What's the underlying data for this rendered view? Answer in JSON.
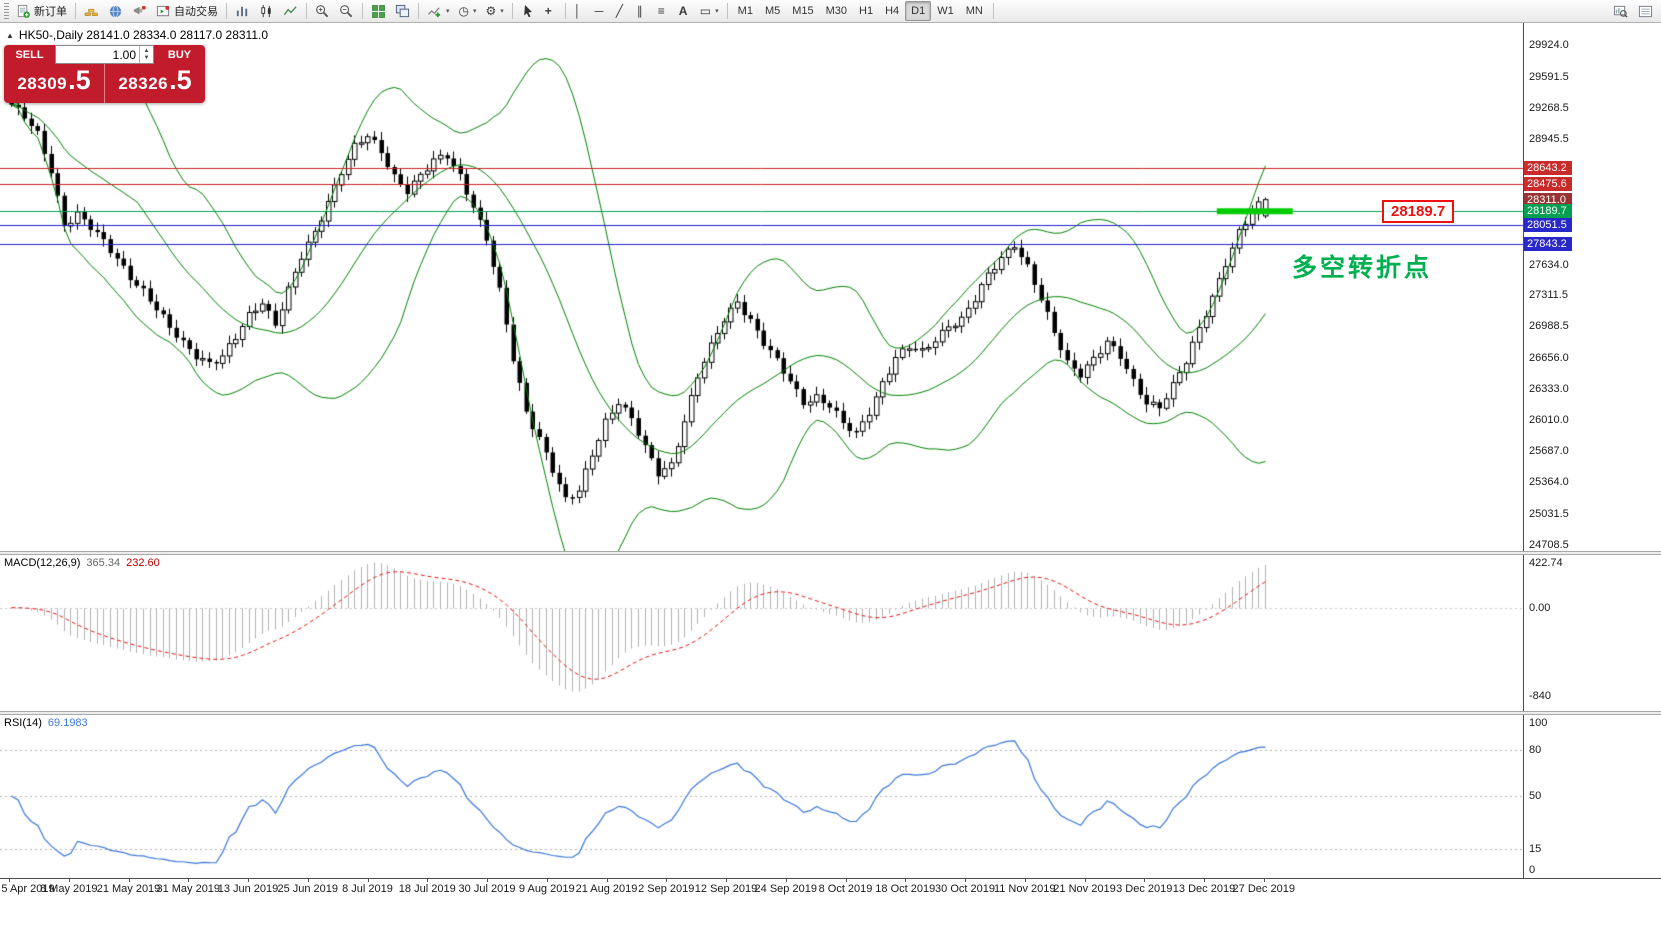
{
  "toolbar": {
    "new_order": "新订单",
    "auto_trading": "自动交易",
    "timeframes": [
      "M1",
      "M5",
      "M15",
      "M30",
      "H1",
      "H4",
      "D1",
      "W1",
      "MN"
    ],
    "active_timeframe": "D1",
    "glyphs": {
      "caret": "▾",
      "crosshair": "+",
      "vline": "│",
      "hline": "─",
      "trendline": "╱",
      "channel": "∥",
      "fibo": "≡",
      "text": "A",
      "label": "▭",
      "periods_clock": "◷",
      "template_gear": "⚙"
    }
  },
  "legend": {
    "text": "HK50-,Daily  28141.0 28334.0 28117.0 28311.0"
  },
  "trade_panel": {
    "sell_label": "SELL",
    "buy_label": "BUY",
    "volume": "1.00",
    "sell_price_main": "28309",
    "sell_price_frac": ".5",
    "buy_price_main": "28326",
    "buy_price_frac": ".5"
  },
  "annotations": {
    "callout": "28189.7",
    "callout_color": "#ee1111",
    "note": "多空转折点",
    "note_color": "#00b050"
  },
  "price_axis": {
    "labels": [
      {
        "text": "29924.0",
        "price": 29924.0
      },
      {
        "text": "29591.5",
        "price": 29591.5
      },
      {
        "text": "29268.5",
        "price": 29268.5
      },
      {
        "text": "28945.5",
        "price": 28945.5
      },
      {
        "text": "27634.0",
        "price": 27634.0
      },
      {
        "text": "27311.5",
        "price": 27311.5
      },
      {
        "text": "26988.5",
        "price": 26988.5
      },
      {
        "text": "26656.0",
        "price": 26656.0
      },
      {
        "text": "26333.0",
        "price": 26333.0
      },
      {
        "text": "26010.0",
        "price": 26010.0
      },
      {
        "text": "25687.0",
        "price": 25687.0
      },
      {
        "text": "25364.0",
        "price": 25364.0
      },
      {
        "text": "25031.5",
        "price": 25031.5
      },
      {
        "text": "24708.5",
        "price": 24708.5
      }
    ],
    "badges": [
      {
        "text": "28643.2",
        "price": 28643.2,
        "bg": "#c92a2a"
      },
      {
        "text": "28475.6",
        "price": 28475.6,
        "bg": "#c92a2a"
      },
      {
        "text": "28311.0",
        "price": 28311.0,
        "bg": "#993333"
      },
      {
        "text": "28189.7",
        "price": 28189.7,
        "bg": "#00a050"
      },
      {
        "text": "28051.5",
        "price": 28051.5,
        "bg": "#2828c8"
      },
      {
        "text": "27843.2",
        "price": 27843.2,
        "bg": "#2828c8"
      }
    ]
  },
  "macd": {
    "name": "MACD(12,26,9)",
    "value_main": "365.34",
    "value_signal": "232.60",
    "axis": [
      {
        "text": "422.74",
        "value": 422.74
      },
      {
        "text": "0.00",
        "value": 0
      },
      {
        "text": "-840",
        "value": -840
      }
    ],
    "range": [
      -950,
      470
    ],
    "histogram_color": "#b2b2b2",
    "signal_color": "#e01818"
  },
  "rsi": {
    "name": "RSI(14)",
    "value": "69.1983",
    "axis": [
      {
        "text": "100",
        "value": 100
      },
      {
        "text": "80",
        "value": 80
      },
      {
        "text": "50",
        "value": 50
      },
      {
        "text": "15",
        "value": 15
      },
      {
        "text": "0",
        "value": 0
      }
    ],
    "levels": [
      80,
      50,
      15
    ],
    "line_color": "#3c78d8"
  },
  "date_axis": [
    "5 Apr 2019",
    "8 May 2019",
    "21 May 2019",
    "31 May 2019",
    "13 Jun 2019",
    "25 Jun 2019",
    "8 Jul 2019",
    "18 Jul 2019",
    "30 Jul 2019",
    "9 Aug 2019",
    "21 Aug 2019",
    "2 Sep 2019",
    "12 Sep 2019",
    "24 Sep 2019",
    "8 Oct 2019",
    "18 Oct 2019",
    "30 Oct 2019",
    "11 Nov 2019",
    "21 Nov 2019",
    "3 Dec 2019",
    "13 Dec 2019",
    "27 Dec 2019"
  ],
  "chart_data": {
    "type": "candlestick",
    "symbol": "HK50-",
    "period": "Daily",
    "y_range": [
      24708.5,
      29924.0
    ],
    "bars_total": 191,
    "last_bar": {
      "open": 28141.0,
      "high": 28334.0,
      "low": 28117.0,
      "close": 28311.0
    },
    "close_anchors": [
      [
        0,
        29300
      ],
      [
        2,
        29160
      ],
      [
        4,
        28980
      ],
      [
        6,
        28620
      ],
      [
        8,
        28060
      ],
      [
        10,
        28160
      ],
      [
        12,
        28010
      ],
      [
        14,
        27860
      ],
      [
        16,
        27700
      ],
      [
        18,
        27520
      ],
      [
        20,
        27360
      ],
      [
        22,
        27160
      ],
      [
        24,
        26960
      ],
      [
        26,
        26820
      ],
      [
        28,
        26700
      ],
      [
        30,
        26610
      ],
      [
        32,
        26660
      ],
      [
        34,
        26860
      ],
      [
        36,
        27100
      ],
      [
        38,
        27260
      ],
      [
        40,
        27020
      ],
      [
        42,
        27360
      ],
      [
        44,
        27700
      ],
      [
        46,
        27960
      ],
      [
        48,
        28300
      ],
      [
        50,
        28620
      ],
      [
        52,
        28860
      ],
      [
        54,
        28960
      ],
      [
        56,
        28800
      ],
      [
        58,
        28560
      ],
      [
        60,
        28420
      ],
      [
        62,
        28560
      ],
      [
        64,
        28700
      ],
      [
        66,
        28760
      ],
      [
        68,
        28560
      ],
      [
        70,
        28260
      ],
      [
        72,
        27900
      ],
      [
        74,
        27340
      ],
      [
        76,
        26640
      ],
      [
        78,
        26100
      ],
      [
        80,
        25840
      ],
      [
        82,
        25500
      ],
      [
        84,
        25160
      ],
      [
        86,
        25260
      ],
      [
        88,
        25660
      ],
      [
        90,
        26010
      ],
      [
        92,
        26210
      ],
      [
        94,
        26010
      ],
      [
        96,
        25710
      ],
      [
        98,
        25460
      ],
      [
        100,
        25560
      ],
      [
        102,
        26010
      ],
      [
        104,
        26460
      ],
      [
        106,
        26760
      ],
      [
        108,
        27060
      ],
      [
        110,
        27260
      ],
      [
        112,
        27060
      ],
      [
        114,
        26810
      ],
      [
        116,
        26610
      ],
      [
        118,
        26410
      ],
      [
        120,
        26210
      ],
      [
        122,
        26260
      ],
      [
        124,
        26160
      ],
      [
        126,
        25960
      ],
      [
        128,
        25860
      ],
      [
        130,
        26110
      ],
      [
        132,
        26410
      ],
      [
        134,
        26660
      ],
      [
        136,
        26760
      ],
      [
        138,
        26710
      ],
      [
        140,
        26860
      ],
      [
        142,
        27010
      ],
      [
        144,
        27060
      ],
      [
        146,
        27260
      ],
      [
        148,
        27510
      ],
      [
        150,
        27710
      ],
      [
        152,
        27860
      ],
      [
        154,
        27610
      ],
      [
        156,
        27260
      ],
      [
        158,
        26910
      ],
      [
        160,
        26610
      ],
      [
        162,
        26510
      ],
      [
        164,
        26660
      ],
      [
        166,
        26810
      ],
      [
        168,
        26660
      ],
      [
        170,
        26410
      ],
      [
        172,
        26210
      ],
      [
        174,
        26160
      ],
      [
        176,
        26360
      ],
      [
        178,
        26610
      ],
      [
        180,
        26960
      ],
      [
        182,
        27310
      ],
      [
        184,
        27660
      ],
      [
        186,
        27960
      ],
      [
        188,
        28160
      ],
      [
        190,
        28311
      ]
    ],
    "hlines": [
      {
        "price": 28643.2,
        "color": "#cc2020"
      },
      {
        "price": 28475.6,
        "color": "#cc2020"
      },
      {
        "price": 28189.7,
        "color": "#00a050"
      },
      {
        "price": 28051.5,
        "color": "#2020cc"
      },
      {
        "price": 27843.2,
        "color": "#2020cc"
      }
    ],
    "highlight_segment": {
      "price": 28189.7,
      "x_from_bar": 183,
      "x_to_bar": 194.5,
      "color": "#00cc00",
      "thickness": 6
    },
    "bollinger": {
      "period": 20,
      "deviation": 2,
      "color": "#008000"
    },
    "candle_up": {
      "fill": "#ffffff",
      "border": "#000000"
    },
    "candle_down": {
      "fill": "#000000",
      "border": "#000000"
    }
  }
}
